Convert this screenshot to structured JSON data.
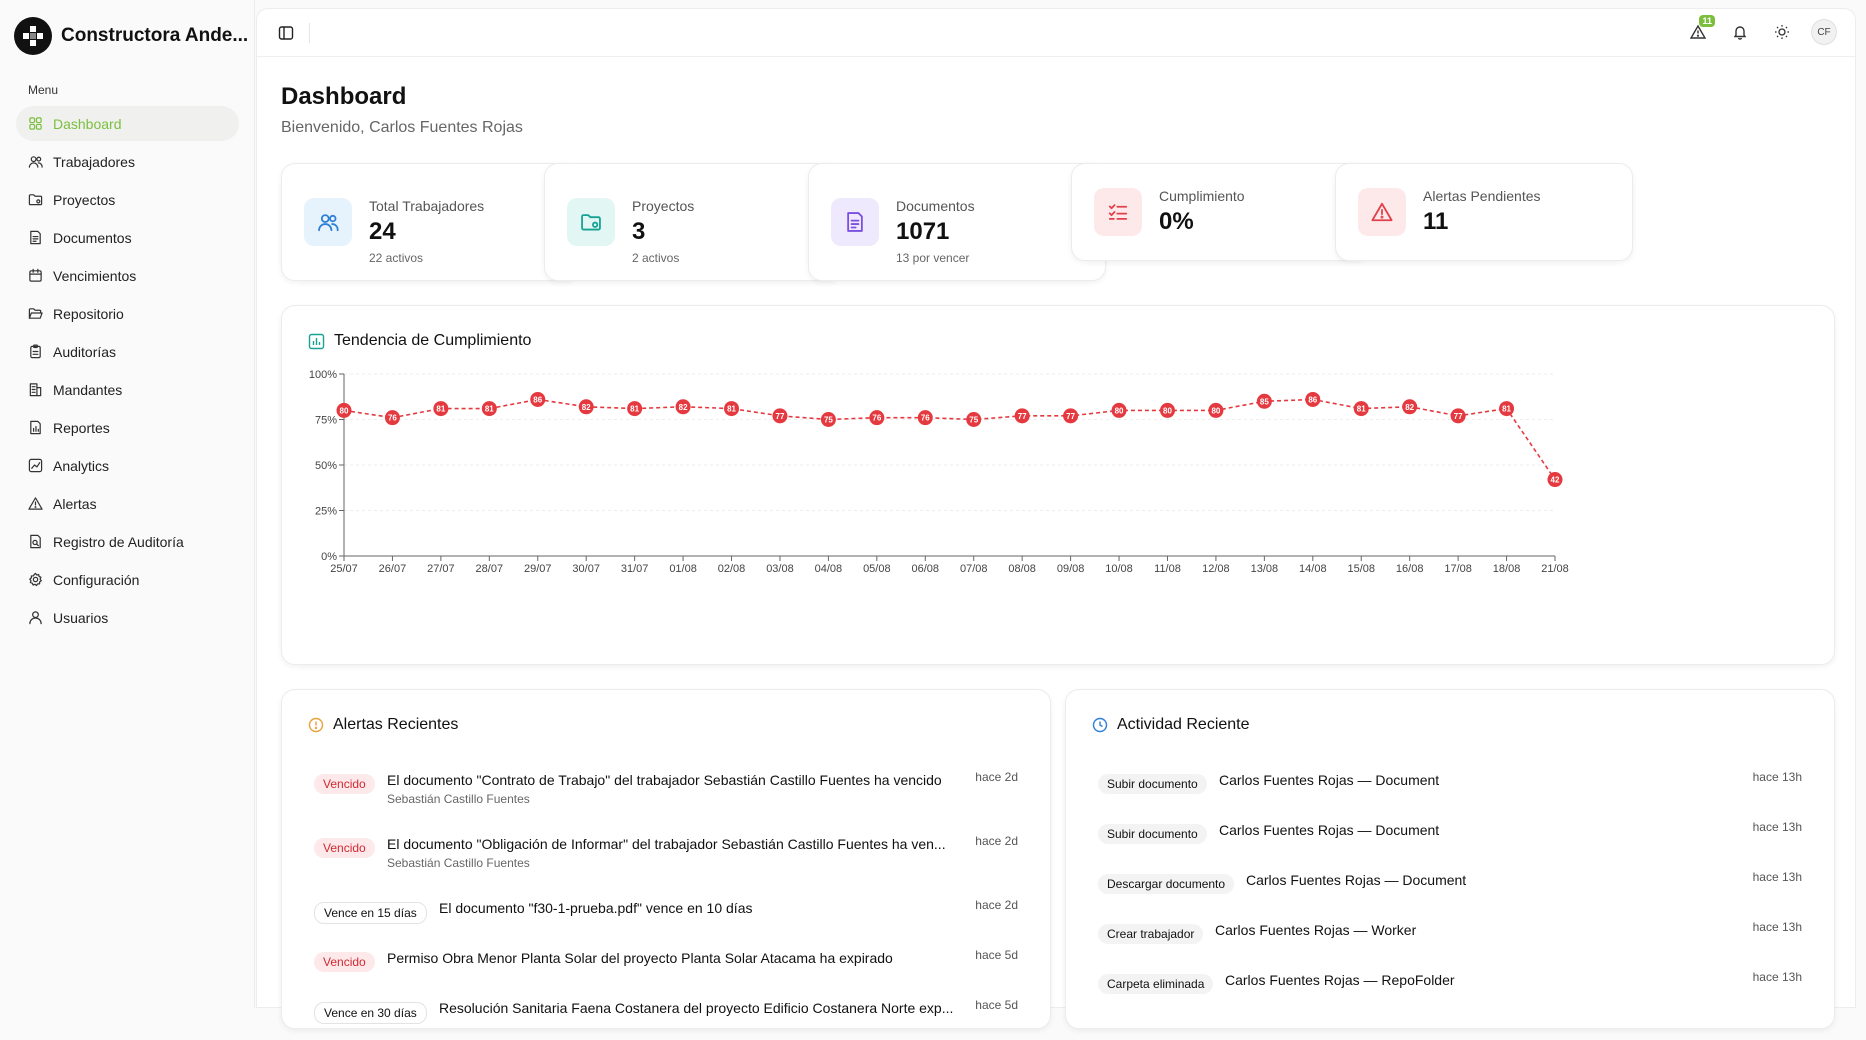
{
  "sidebar": {
    "brand": "Constructora Ande...",
    "menu_title": "Menu",
    "items": [
      {
        "label": "Dashboard",
        "icon": "grid-icon"
      },
      {
        "label": "Trabajadores",
        "icon": "users-icon"
      },
      {
        "label": "Proyectos",
        "icon": "folder-icon"
      },
      {
        "label": "Documentos",
        "icon": "document-icon"
      },
      {
        "label": "Vencimientos",
        "icon": "calendar-icon"
      },
      {
        "label": "Repositorio",
        "icon": "folder-open-icon"
      },
      {
        "label": "Auditorías",
        "icon": "clipboard-icon"
      },
      {
        "label": "Mandantes",
        "icon": "building-icon"
      },
      {
        "label": "Reportes",
        "icon": "file-chart-icon"
      },
      {
        "label": "Analytics",
        "icon": "analytics-icon"
      },
      {
        "label": "Alertas",
        "icon": "alert-triangle-icon"
      },
      {
        "label": "Registro de Auditoría",
        "icon": "file-search-icon"
      },
      {
        "label": "Configuración",
        "icon": "gear-icon"
      },
      {
        "label": "Usuarios",
        "icon": "user-icon"
      }
    ]
  },
  "topbar": {
    "alert_count": "11",
    "avatar_initials": "CF"
  },
  "page": {
    "title": "Dashboard",
    "subtitle": "Bienvenido, Carlos Fuentes Rojas"
  },
  "stats": [
    {
      "label": "Total Trabajadores",
      "value": "24",
      "note": "22 activos",
      "icon": "users-icon",
      "color": "#2e7fd6",
      "bg": "#e6f2fc"
    },
    {
      "label": "Proyectos",
      "value": "3",
      "note": "2 activos",
      "icon": "folder-icon",
      "color": "#16a394",
      "bg": "#e2f6f3"
    },
    {
      "label": "Documentos",
      "value": "1071",
      "note": "13 por vencer",
      "icon": "document-icon",
      "color": "#7b4fe0",
      "bg": "#efe9fd"
    },
    {
      "label": "Cumplimiento",
      "value": "0%",
      "note": "",
      "icon": "list-checks-icon",
      "color": "#e0414a",
      "bg": "#fde8ea"
    },
    {
      "label": "Alertas Pendientes",
      "value": "11",
      "note": "",
      "icon": "alert-triangle-icon",
      "color": "#e0414a",
      "bg": "#fde8ea"
    }
  ],
  "chart_title": "Tendencia de Cumplimiento",
  "chart_data": {
    "type": "line",
    "categories": [
      "25/07",
      "26/07",
      "27/07",
      "28/07",
      "29/07",
      "30/07",
      "31/07",
      "01/08",
      "02/08",
      "03/08",
      "04/08",
      "05/08",
      "06/08",
      "07/08",
      "08/08",
      "09/08",
      "10/08",
      "11/08",
      "12/08",
      "13/08",
      "14/08",
      "15/08",
      "16/08",
      "17/08",
      "18/08",
      "21/08"
    ],
    "series": [
      {
        "values": [
          80,
          76,
          81,
          81,
          86,
          82,
          81,
          82,
          81,
          77,
          75,
          76,
          76,
          75,
          77,
          77,
          80,
          80,
          80,
          85,
          86,
          81,
          82,
          77,
          81,
          42
        ]
      }
    ],
    "yticks": [
      "0%",
      "25%",
      "50%",
      "75%",
      "100%"
    ],
    "ylim": [
      0,
      100
    ],
    "color": "#e53940",
    "line_style": "dashed",
    "point_labels": true,
    "grid": "horizontal-dashed"
  },
  "alerts": {
    "title": "Alertas Recientes",
    "items": [
      {
        "badge": "Vencido",
        "badge_style": "red",
        "text": "El documento \"Contrato de Trabajo\" del trabajador Sebastián Castillo Fuentes ha vencido",
        "sub": "Sebastián Castillo Fuentes",
        "time": "hace 2d"
      },
      {
        "badge": "Vencido",
        "badge_style": "red",
        "text": "El documento \"Obligación de Informar\" del trabajador Sebastián Castillo Fuentes ha ven...",
        "sub": "Sebastián Castillo Fuentes",
        "time": "hace 2d"
      },
      {
        "badge": "Vence en 15 días",
        "badge_style": "outline",
        "text": "El documento \"f30-1-prueba.pdf\" vence en 10 días",
        "sub": "",
        "time": "hace 2d"
      },
      {
        "badge": "Vencido",
        "badge_style": "red",
        "text": "Permiso Obra Menor Planta Solar del proyecto Planta Solar Atacama ha expirado",
        "sub": "",
        "time": "hace 5d"
      },
      {
        "badge": "Vence en 30 días",
        "badge_style": "outline",
        "text": "Resolución Sanitaria Faena Costanera del proyecto Edificio Costanera Norte exp...",
        "sub": "",
        "time": "hace 5d"
      }
    ]
  },
  "activity": {
    "title": "Actividad Reciente",
    "items": [
      {
        "badge": "Subir documento",
        "text": "Carlos Fuentes Rojas — Document",
        "time": "hace 13h"
      },
      {
        "badge": "Subir documento",
        "text": "Carlos Fuentes Rojas — Document",
        "time": "hace 13h"
      },
      {
        "badge": "Descargar documento",
        "text": "Carlos Fuentes Rojas — Document",
        "time": "hace 13h"
      },
      {
        "badge": "Crear trabajador",
        "text": "Carlos Fuentes Rojas — Worker",
        "time": "hace 13h"
      },
      {
        "badge": "Carpeta eliminada",
        "text": "Carlos Fuentes Rojas — RepoFolder",
        "time": "hace 13h"
      }
    ]
  }
}
